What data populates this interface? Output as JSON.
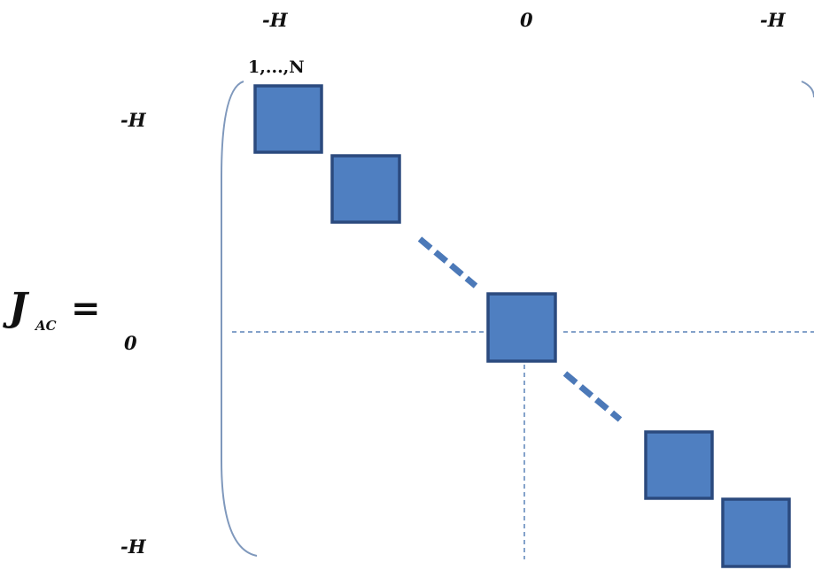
{
  "equation": {
    "symbol": "J",
    "subscript": "AC",
    "equals": "="
  },
  "column_labels": [
    "-H",
    "0",
    "-H"
  ],
  "row_labels": [
    "-H",
    "0",
    "-H"
  ],
  "block_index_label": "1,...,N",
  "blocks": [
    {
      "name": "block-1"
    },
    {
      "name": "block-2"
    },
    {
      "name": "block-center"
    },
    {
      "name": "block-4"
    },
    {
      "name": "block-5"
    }
  ],
  "colors": {
    "block_fill": "#4F7FC1",
    "block_stroke": "#2B4A7E",
    "bracket": "#7F98BC",
    "dashed_line": "#5B84B8",
    "ellipsis_dash": "#4C79B8"
  }
}
